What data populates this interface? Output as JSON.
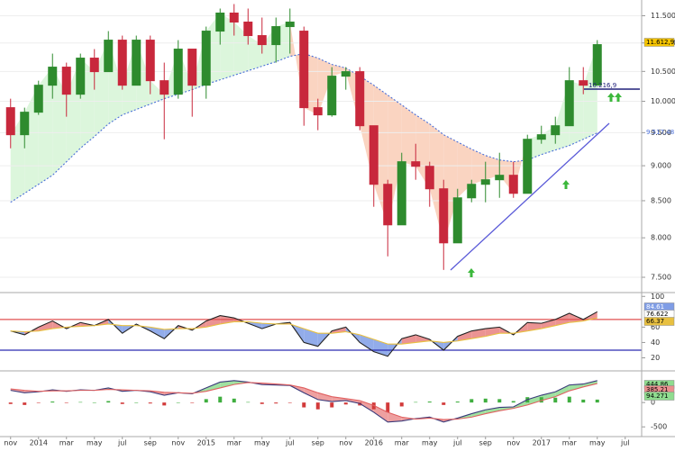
{
  "chart_data": [
    {
      "type": "candlestick",
      "log_scale": true,
      "grid": true,
      "categories": [
        "nov",
        null,
        "2014",
        null,
        "mar",
        null,
        "may",
        null,
        "jul",
        null,
        "sep",
        null,
        "nov",
        null,
        "2015",
        null,
        "mar",
        null,
        "may",
        null,
        "jul",
        null,
        "sep",
        null,
        "nov",
        null,
        "2016",
        null,
        "mar",
        null,
        "may",
        null,
        "jul",
        null,
        "sep",
        null,
        "nov",
        null,
        "2017",
        null,
        "mar",
        null,
        "may",
        null,
        "jul",
        null
      ],
      "open": [
        9896,
        9468,
        9823,
        10266,
        10574,
        10116,
        10731,
        10496,
        11051,
        10266,
        11051,
        10342,
        10116,
        10890,
        10266,
        11215,
        11551,
        11382,
        11133,
        10970,
        11298,
        11215,
        9896,
        9780,
        10419,
        10496,
        9608,
        8731,
        8171,
        9059,
        8992,
        8667,
        7934,
        8540,
        8731,
        8796,
        8861,
        8603,
        9398,
        9468,
        9608,
        10342,
        10266,
        null,
        null,
        null
      ],
      "high": [
        10042,
        9896,
        10342,
        10810,
        10652,
        10810,
        10890,
        11215,
        11133,
        11133,
        11133,
        10652,
        11051,
        10890,
        11298,
        11636,
        11722,
        11636,
        11466,
        11466,
        11636,
        11298,
        10042,
        10574,
        10574,
        10574,
        9608,
        8796,
        9193,
        9329,
        9059,
        8796,
        8667,
        8796,
        9059,
        9193,
        9059,
        9468,
        9608,
        9751,
        10574,
        10574,
        11051,
        null,
        null,
        null
      ],
      "low": [
        9260,
        9260,
        9780,
        10042,
        9751,
        10042,
        10191,
        10496,
        10191,
        10266,
        10116,
        9398,
        10042,
        9751,
        10042,
        10970,
        11133,
        10970,
        10810,
        10652,
        10810,
        9608,
        9538,
        9751,
        10191,
        9538,
        8416,
        7761,
        8171,
        8796,
        8416,
        7591,
        7934,
        8478,
        8478,
        8540,
        8540,
        8603,
        9329,
        9329,
        9608,
        10116,
        10266,
        null,
        null,
        null
      ],
      "close": [
        9468,
        9823,
        10266,
        10574,
        10116,
        10731,
        10496,
        11051,
        10266,
        11051,
        10342,
        10116,
        10890,
        10266,
        11215,
        11551,
        11382,
        11133,
        10970,
        11298,
        11382,
        9896,
        9780,
        10419,
        10496,
        9608,
        8731,
        8171,
        9059,
        8992,
        8667,
        7934,
        8540,
        8731,
        8796,
        8861,
        8603,
        9398,
        9468,
        9608,
        10342,
        10266,
        10970,
        null,
        null,
        null
      ],
      "moving_average": {
        "color": "#4a6fd8",
        "values": [
          8478,
          8603,
          8731,
          8861,
          9059,
          9261,
          9440,
          9636,
          9780,
          9867,
          9954,
          10042,
          10116,
          10191,
          10281,
          10357,
          10434,
          10512,
          10590,
          10668,
          10762,
          10810,
          10731,
          10620,
          10558,
          10419,
          10266,
          10101,
          9940,
          9780,
          9636,
          9468,
          9356,
          9247,
          9152,
          9085,
          9059,
          9085,
          9166,
          9234,
          9302,
          9398,
          9496,
          null,
          null,
          null
        ]
      },
      "up_color": "#2e8b2e",
      "down_color": "#c8283c",
      "fill_colors": [
        "#d6f4d6",
        "#f9cdb6"
      ],
      "ylim": [
        7315,
        11800
      ],
      "yticks": [
        {
          "value": 7500,
          "label": "7.500"
        },
        {
          "value": 8000,
          "label": "8.000"
        },
        {
          "value": 8500,
          "label": "8.500"
        },
        {
          "value": 9000,
          "label": "9.000"
        },
        {
          "value": 9500,
          "label": "9.500"
        },
        {
          "value": 10000,
          "label": "10.000"
        },
        {
          "value": 10500,
          "label": "10.500"
        },
        {
          "value": 11000,
          "label": "11.000"
        },
        {
          "value": 11500,
          "label": "11.500"
        }
      ],
      "annotations": [
        "11.612,9",
        "10.216,9",
        "9.517,48"
      ]
    },
    {
      "type": "line",
      "lines": [
        {
          "color": "#222222",
          "values": [
            55,
            50,
            60,
            68,
            58,
            66,
            62,
            70,
            52,
            64,
            55,
            45,
            62,
            56,
            68,
            75,
            72,
            65,
            58,
            64,
            66,
            40,
            35,
            55,
            60,
            40,
            28,
            22,
            45,
            50,
            44,
            30,
            48,
            55,
            58,
            60,
            50,
            66,
            65,
            70,
            78,
            70,
            80,
            null,
            null,
            null
          ]
        },
        {
          "color": "#e8c040",
          "values": [
            55,
            54,
            55,
            58,
            60,
            61,
            62,
            64,
            62,
            62,
            60,
            57,
            58,
            58,
            60,
            64,
            67,
            67,
            65,
            64,
            64,
            58,
            52,
            52,
            54,
            50,
            44,
            38,
            38,
            40,
            42,
            40,
            42,
            45,
            48,
            52,
            52,
            55,
            58,
            62,
            66,
            68,
            72,
            null,
            null,
            null
          ]
        }
      ],
      "fill_colors": [
        "#e88080",
        "#7f9de6"
      ],
      "ref_lines": [
        {
          "value": 70,
          "color": "#e05050"
        },
        {
          "value": 30,
          "color": "#2b2bb0"
        }
      ],
      "ylim": [
        3,
        105
      ],
      "yticks": [
        20,
        40,
        60,
        100
      ],
      "annotations": [
        "84.61",
        "76.622",
        "66.37"
      ]
    },
    {
      "type": "line",
      "lines": [
        {
          "color": "#3a3a7a",
          "values": [
            250,
            200,
            220,
            260,
            230,
            260,
            250,
            300,
            230,
            250,
            220,
            150,
            200,
            180,
            300,
            420,
            450,
            420,
            370,
            360,
            350,
            200,
            60,
            20,
            40,
            -20,
            -200,
            -400,
            -380,
            -330,
            -300,
            -400,
            -320,
            -230,
            -150,
            -100,
            -90,
            60,
            150,
            220,
            360,
            380,
            450,
            null,
            null,
            null
          ]
        },
        {
          "color": "#e06060",
          "values": [
            280,
            250,
            230,
            240,
            240,
            250,
            250,
            270,
            260,
            250,
            240,
            210,
            200,
            190,
            230,
            300,
            370,
            410,
            400,
            380,
            360,
            300,
            200,
            120,
            80,
            40,
            -60,
            -200,
            -300,
            -340,
            -320,
            -350,
            -340,
            -300,
            -230,
            -170,
            -120,
            -50,
            40,
            120,
            240,
            320,
            390,
            null,
            null,
            null
          ]
        }
      ],
      "fill_colors": [
        "#8fdc8f",
        "#eb8f8f"
      ],
      "histogram": {
        "up_color": "#3fae3f",
        "down_color": "#d23a3a",
        "values": [
          -30,
          -50,
          -10,
          20,
          -10,
          10,
          0,
          30,
          -30,
          0,
          -20,
          -60,
          0,
          -10,
          70,
          120,
          80,
          10,
          -30,
          -20,
          -10,
          -100,
          -140,
          -100,
          -40,
          -60,
          -140,
          -200,
          -80,
          10,
          20,
          -50,
          20,
          70,
          80,
          70,
          30,
          110,
          110,
          100,
          120,
          60,
          60,
          null,
          null,
          null
        ]
      },
      "ylim": [
        -700,
        650
      ],
      "yticks": [
        -500,
        0
      ],
      "annotations": [
        "444.86",
        "385.21",
        "94.271"
      ]
    }
  ]
}
